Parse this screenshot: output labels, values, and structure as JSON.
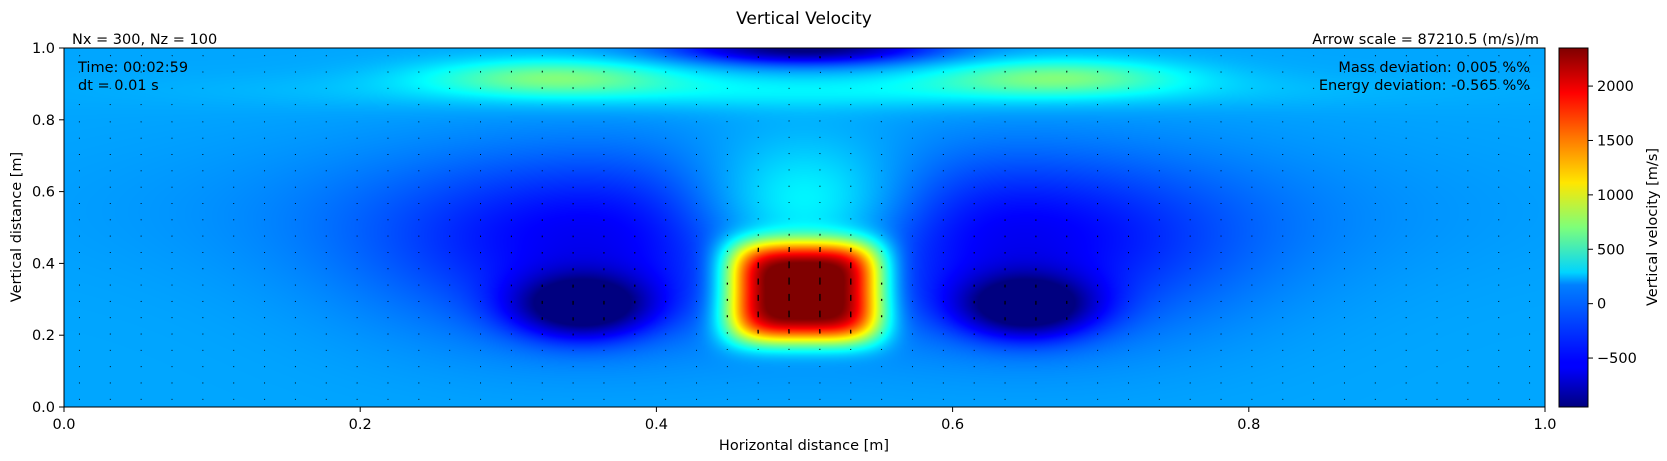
{
  "chart_data": {
    "type": "heatmap",
    "title": "Vertical Velocity",
    "xlabel": "Horizontal distance [m]",
    "ylabel": "Vertical distance [m]",
    "xlim": [
      0.0,
      1.0
    ],
    "ylim": [
      0.0,
      1.0
    ],
    "xticks": [
      "0.0",
      "0.2",
      "0.4",
      "0.6",
      "0.8",
      "1.0"
    ],
    "yticks": [
      "0.0",
      "0.2",
      "0.4",
      "0.6",
      "0.8",
      "1.0"
    ],
    "colormap": "jet",
    "colorbar": {
      "label": "Vertical velocity [m/s]",
      "range": [
        -950,
        2350
      ],
      "ticks": [
        -500,
        0,
        500,
        1000,
        1500,
        2000
      ],
      "tick_labels": [
        "−500",
        "0",
        "500",
        "1000",
        "1500",
        "2000"
      ]
    },
    "annotations": {
      "grid_info": "Nx = 300, Nz = 100",
      "arrow_scale": "Arrow scale = 87210.5 (m/s)/m",
      "time": "Time: 00:02:59",
      "dt": "dt = 0.01 s",
      "mass_deviation": "Mass deviation: 0.005 %%",
      "energy_deviation": "Energy deviation: -0.565 %%"
    },
    "field_features": [
      {
        "kind": "updraft",
        "x": 0.5,
        "y": 0.32,
        "value": 2350
      },
      {
        "kind": "downdraft",
        "x": 0.35,
        "y": 0.28,
        "value": -950
      },
      {
        "kind": "downdraft",
        "x": 0.65,
        "y": 0.28,
        "value": -950
      },
      {
        "kind": "downdraft",
        "x": 0.5,
        "y": 0.95,
        "value": -800
      },
      {
        "kind": "weak-upward",
        "x": 0.33,
        "y": 0.92,
        "value": 700
      },
      {
        "kind": "weak-upward",
        "x": 0.67,
        "y": 0.92,
        "value": 700
      }
    ],
    "grid": false,
    "quiver": true
  }
}
